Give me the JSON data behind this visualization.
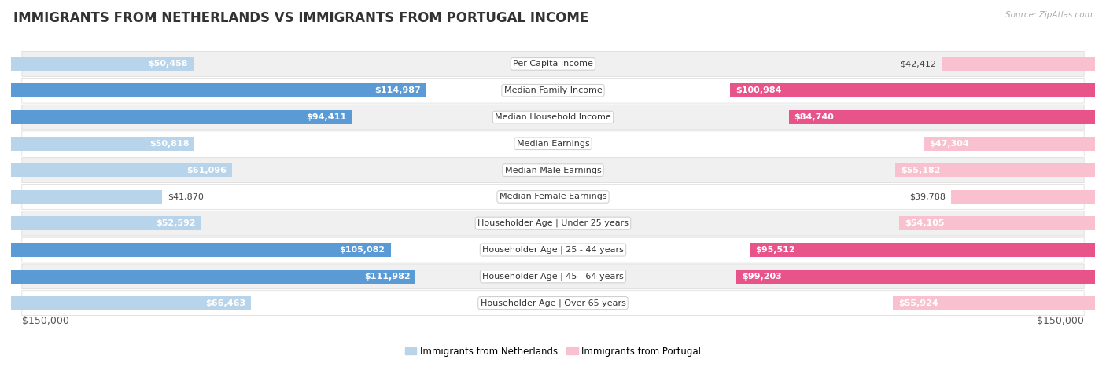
{
  "title": "IMMIGRANTS FROM NETHERLANDS VS IMMIGRANTS FROM PORTUGAL INCOME",
  "source": "Source: ZipAtlas.com",
  "categories": [
    "Per Capita Income",
    "Median Family Income",
    "Median Household Income",
    "Median Earnings",
    "Median Male Earnings",
    "Median Female Earnings",
    "Householder Age | Under 25 years",
    "Householder Age | 25 - 44 years",
    "Householder Age | 45 - 64 years",
    "Householder Age | Over 65 years"
  ],
  "netherlands_values": [
    50458,
    114987,
    94411,
    50818,
    61096,
    41870,
    52592,
    105082,
    111982,
    66463
  ],
  "portugal_values": [
    42412,
    100984,
    84740,
    47304,
    55182,
    39788,
    54105,
    95512,
    99203,
    55924
  ],
  "netherlands_labels": [
    "$50,458",
    "$114,987",
    "$94,411",
    "$50,818",
    "$61,096",
    "$41,870",
    "$52,592",
    "$105,082",
    "$111,982",
    "$66,463"
  ],
  "portugal_labels": [
    "$42,412",
    "$100,984",
    "$84,740",
    "$47,304",
    "$55,182",
    "$39,788",
    "$54,105",
    "$95,512",
    "$99,203",
    "$55,924"
  ],
  "netherlands_color_light": "#b8d4ea",
  "netherlands_color_dark": "#5b9bd5",
  "portugal_color_light": "#f9c0d0",
  "portugal_color_dark": "#e8538a",
  "netherlands_threshold": 70000,
  "portugal_threshold": 70000,
  "max_value": 150000,
  "bar_height": 0.52,
  "background_color": "#ffffff",
  "row_color_odd": "#f0f0f0",
  "row_color_even": "#ffffff",
  "legend_netherlands": "Immigrants from Netherlands",
  "legend_portugal": "Immigrants from Portugal",
  "xlabel_left": "$150,000",
  "xlabel_right": "$150,000",
  "title_fontsize": 12,
  "label_fontsize": 8,
  "category_fontsize": 8,
  "axis_fontsize": 9
}
